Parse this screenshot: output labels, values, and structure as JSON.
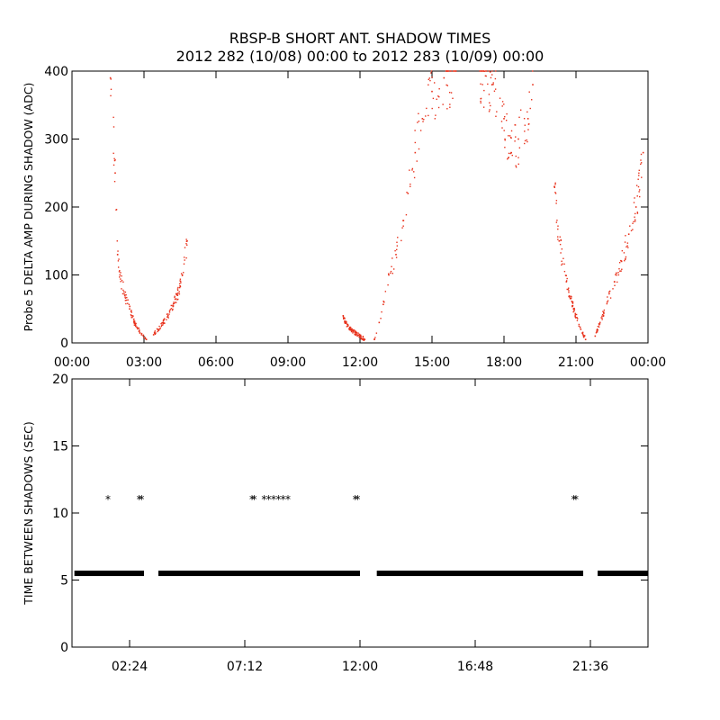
{
  "title_line1": "RBSP-B SHORT ANT. SHADOW TIMES",
  "title_line2": "2012 282 (10/08) 00:00 to 2012 283 (10/09) 00:00",
  "colors": {
    "top_points": "#e8311b",
    "bottom_points": "#000000",
    "axes": "#000000"
  },
  "chart_data": [
    {
      "type": "scatter",
      "ylabel": "Probe 5 DELTA AMP DURING SHADOW (ADC)",
      "xlim": [
        0,
        24
      ],
      "ylim": [
        0,
        400
      ],
      "x_unit": "hours",
      "yticks": [
        0,
        100,
        200,
        300,
        400
      ],
      "xtick_values": [
        0,
        3,
        6,
        9,
        12,
        15,
        18,
        21,
        24
      ],
      "xtick_labels": [
        "00:00",
        "03:00",
        "06:00",
        "09:00",
        "12:00",
        "15:00",
        "18:00",
        "21:00",
        "00:00"
      ],
      "marker_color": "#e8311b",
      "series": [
        {
          "segments": [
            {
              "x": [
                1.6,
                1.8,
                1.9,
                2.0,
                2.2,
                2.4,
                2.6,
                2.9,
                3.1
              ],
              "y": [
                390,
                250,
                130,
                100,
                70,
                50,
                30,
                12,
                5
              ]
            },
            {
              "x": [
                3.4,
                3.6,
                3.8,
                4.0,
                4.2,
                4.4,
                4.6,
                4.8
              ],
              "y": [
                12,
                20,
                30,
                40,
                55,
                70,
                100,
                150
              ]
            },
            {
              "x": [
                11.3,
                11.4,
                11.6,
                11.8,
                12.0,
                12.2
              ],
              "y": [
                40,
                30,
                20,
                15,
                10,
                5
              ]
            },
            {
              "x": [
                12.6,
                12.8,
                13.0,
                13.2,
                13.5,
                13.8,
                14.0,
                14.3,
                14.6,
                15.0,
                15.5,
                16.0
              ],
              "y": [
                5,
                30,
                60,
                100,
                130,
                180,
                220,
                280,
                330,
                370,
                390,
                400
              ]
            },
            {
              "x": [
                17.0,
                17.5,
                18.0,
                18.3,
                18.6,
                19.0,
                19.2
              ],
              "y": [
                400,
                380,
                330,
                280,
                300,
                330,
                380
              ]
            },
            {
              "x": [
                20.1,
                20.3,
                20.6,
                20.9,
                21.2,
                21.4
              ],
              "y": [
                230,
                150,
                90,
                50,
                20,
                5
              ]
            },
            {
              "x": [
                21.8,
                22.0,
                22.3,
                22.6,
                22.9,
                23.2,
                23.5,
                23.8
              ],
              "y": [
                10,
                30,
                60,
                90,
                120,
                160,
                200,
                280
              ]
            }
          ]
        }
      ]
    },
    {
      "type": "scatter",
      "ylabel": "TIME BETWEEN SHADOWS (SEC)",
      "xlim": [
        0,
        24
      ],
      "ylim": [
        0,
        20
      ],
      "x_unit": "hours",
      "yticks": [
        0,
        5,
        10,
        15,
        20
      ],
      "xtick_values": [
        2.4,
        7.2,
        12.0,
        16.8,
        21.6
      ],
      "xtick_labels": [
        "02:24",
        "07:12",
        "12:00",
        "16:48",
        "21:36"
      ],
      "marker": "*",
      "marker_color": "#000000",
      "baseline_value": 5.5,
      "baseline_ranges": [
        [
          0.1,
          3.0
        ],
        [
          3.6,
          12.0
        ],
        [
          12.7,
          21.3
        ],
        [
          21.9,
          24.0
        ]
      ],
      "series": [
        {
          "x": [
            1.5,
            2.8,
            2.9,
            7.5,
            7.6,
            8.0,
            8.2,
            8.4,
            8.6,
            8.8,
            9.0,
            11.8,
            11.9,
            20.9,
            21.0
          ],
          "y": [
            11,
            11,
            11,
            11,
            11,
            11,
            11,
            11,
            11,
            11,
            11,
            11,
            11,
            11,
            11
          ]
        }
      ]
    }
  ]
}
